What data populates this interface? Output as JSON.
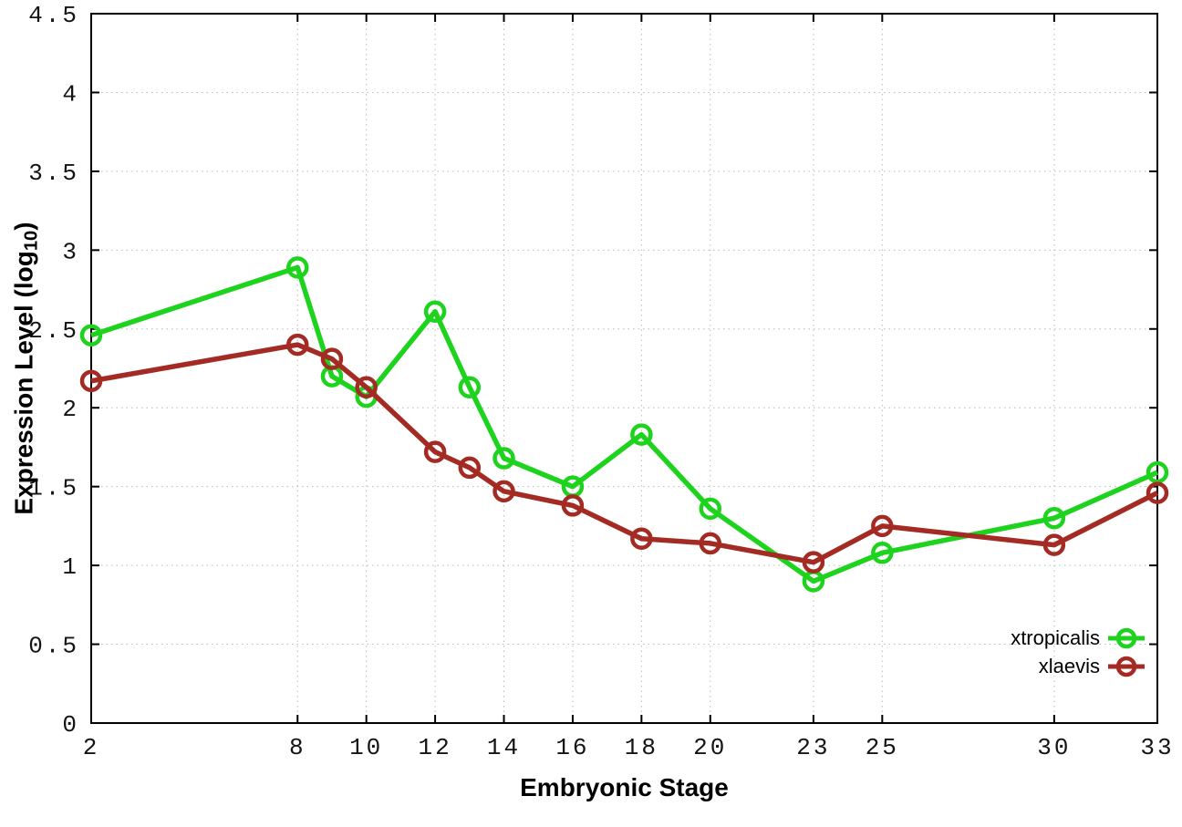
{
  "figure": {
    "xlabel": "Embryonic Stage",
    "ylabel": "Expression Level (log10)",
    "ylabel_parts": {
      "main": "Expression Level (log",
      "sub": "10",
      "end": ")"
    }
  },
  "colors": {
    "xtropicalis": "#1dd31d",
    "xlaevis": "#a42b24",
    "grid": "#bcbcbc",
    "axis": "#000000",
    "background": "#ffffff"
  },
  "chart_data": {
    "type": "line",
    "title": "",
    "xlabel": "Embryonic Stage",
    "ylabel": "Expression Level (log10)",
    "x": [
      2,
      8,
      9,
      10,
      12,
      13,
      14,
      16,
      18,
      20,
      23,
      25,
      30,
      33
    ],
    "series": [
      {
        "name": "xtropicalis",
        "color": "#1dd31d",
        "values": [
          2.46,
          2.89,
          2.2,
          2.07,
          2.61,
          2.13,
          1.68,
          1.5,
          1.83,
          1.36,
          0.9,
          1.08,
          1.3,
          1.59
        ]
      },
      {
        "name": "xlaevis",
        "color": "#a42b24",
        "values": [
          2.17,
          2.4,
          2.31,
          2.13,
          1.72,
          1.62,
          1.47,
          1.38,
          1.17,
          1.14,
          1.02,
          1.25,
          1.13,
          1.46
        ]
      }
    ],
    "xlim": [
      2,
      33
    ],
    "ylim": [
      0,
      4.5
    ],
    "xticks": [
      2,
      8,
      10,
      12,
      14,
      16,
      18,
      20,
      23,
      25,
      30,
      33
    ],
    "yticks": [
      0,
      0.5,
      1,
      1.5,
      2,
      2.5,
      3,
      3.5,
      4,
      4.5
    ],
    "grid": true,
    "marker": "open-circle",
    "legend_position": "inside-bottom-right",
    "legend_entries": [
      "xtropicalis",
      "xlaevis"
    ]
  }
}
